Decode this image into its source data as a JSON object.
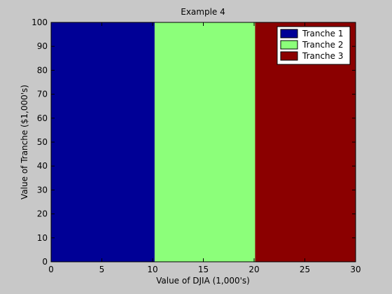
{
  "chart_data": {
    "type": "area",
    "title": "Example 4",
    "xlabel": "Value of DJIA (1,000's)",
    "ylabel": "Value of Tranche ($1,000's)",
    "xlim": [
      0,
      30
    ],
    "ylim": [
      0,
      100
    ],
    "x_ticks": [
      0,
      5,
      10,
      15,
      20,
      25,
      30
    ],
    "y_ticks": [
      0,
      10,
      20,
      30,
      40,
      50,
      60,
      70,
      80,
      90,
      100
    ],
    "grid": false,
    "legend_position": "top-right",
    "series": [
      {
        "name": "Tranche 1",
        "color": "#000096",
        "x_start": 0,
        "x_end": 10.2,
        "value": 100
      },
      {
        "name": "Tranche 2",
        "color": "#8cff7a",
        "x_start": 10.2,
        "x_end": 20.1,
        "value": 100
      },
      {
        "name": "Tranche 3",
        "color": "#8b0000",
        "x_start": 20.1,
        "x_end": 30,
        "value": 100
      }
    ]
  },
  "colors": {
    "figure_background": "#c8c8c8",
    "axis_line": "#000000"
  }
}
